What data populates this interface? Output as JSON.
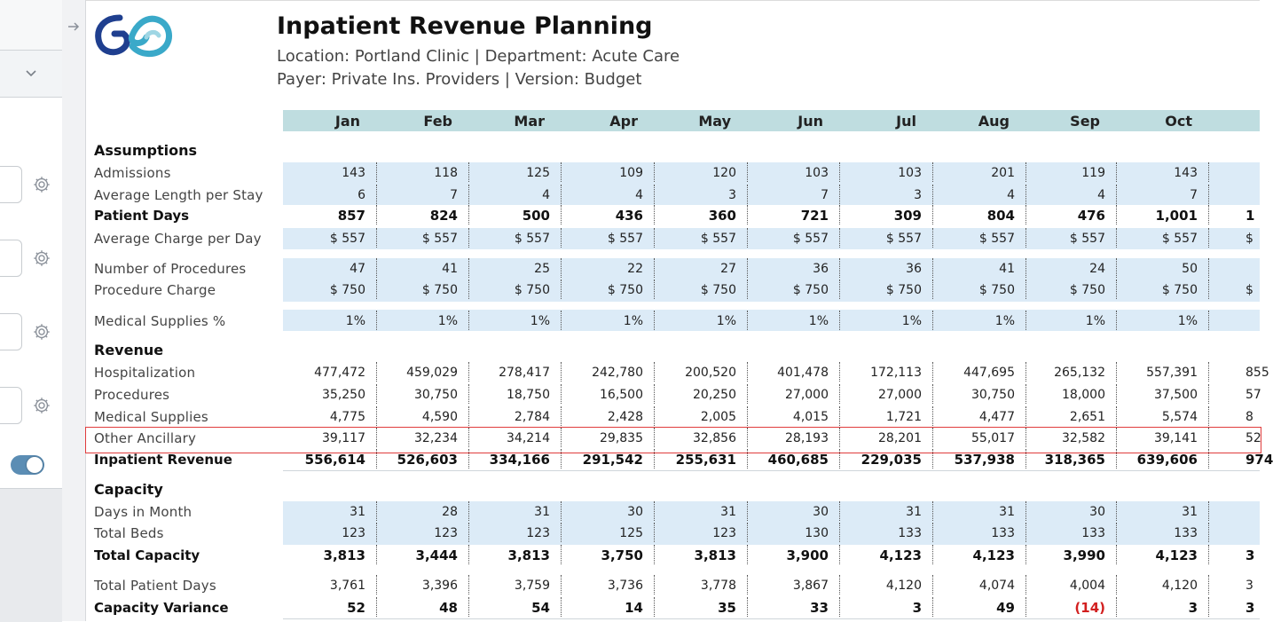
{
  "report": {
    "title": "Inpatient Revenue Planning",
    "subtitle_location": "Location: Portland Clinic | Department: Acute Care",
    "subtitle_payer": "Payer: Private Ins. Providers | Version: Budget"
  },
  "months": [
    "Jan",
    "Feb",
    "Mar",
    "Apr",
    "May",
    "Jun",
    "Jul",
    "Aug",
    "Sep",
    "Oct"
  ],
  "sections": {
    "assumptions": "Assumptions",
    "revenue": "Revenue",
    "capacity": "Capacity"
  },
  "rows": {
    "admissions": {
      "label": "Admissions",
      "values": [
        "143",
        "118",
        "125",
        "109",
        "120",
        "103",
        "103",
        "201",
        "119",
        "143"
      ]
    },
    "avg_length": {
      "label": "Average Length per Stay",
      "values": [
        "6",
        "7",
        "4",
        "4",
        "3",
        "7",
        "3",
        "4",
        "4",
        "7"
      ]
    },
    "patient_days": {
      "label": "Patient Days",
      "values": [
        "857",
        "824",
        "500",
        "436",
        "360",
        "721",
        "309",
        "804",
        "476",
        "1,001"
      ],
      "overflow": "1"
    },
    "avg_charge": {
      "label": "Average Charge per Day",
      "values": [
        "$ 557",
        "$ 557",
        "$ 557",
        "$ 557",
        "$ 557",
        "$ 557",
        "$ 557",
        "$ 557",
        "$ 557",
        "$ 557"
      ],
      "overflow": "$"
    },
    "num_procedures": {
      "label": "Number of Procedures",
      "values": [
        "47",
        "41",
        "25",
        "22",
        "27",
        "36",
        "36",
        "41",
        "24",
        "50"
      ]
    },
    "procedure_charge": {
      "label": "Procedure Charge",
      "values": [
        "$ 750",
        "$ 750",
        "$ 750",
        "$ 750",
        "$ 750",
        "$ 750",
        "$ 750",
        "$ 750",
        "$ 750",
        "$ 750"
      ],
      "overflow": "$"
    },
    "med_supplies_pct": {
      "label": "Medical Supplies %",
      "values": [
        "1%",
        "1%",
        "1%",
        "1%",
        "1%",
        "1%",
        "1%",
        "1%",
        "1%",
        "1%"
      ]
    },
    "hospitalization": {
      "label": "Hospitalization",
      "values": [
        "477,472",
        "459,029",
        "278,417",
        "242,780",
        "200,520",
        "401,478",
        "172,113",
        "447,695",
        "265,132",
        "557,391"
      ],
      "overflow": "855"
    },
    "procedures": {
      "label": "Procedures",
      "values": [
        "35,250",
        "30,750",
        "18,750",
        "16,500",
        "20,250",
        "27,000",
        "27,000",
        "30,750",
        "18,000",
        "37,500"
      ],
      "overflow": "57"
    },
    "medical_supplies": {
      "label": "Medical Supplies",
      "values": [
        "4,775",
        "4,590",
        "2,784",
        "2,428",
        "2,005",
        "4,015",
        "1,721",
        "4,477",
        "2,651",
        "5,574"
      ],
      "overflow": "8"
    },
    "other_ancillary": {
      "label": "Other Ancillary",
      "values": [
        "39,117",
        "32,234",
        "34,214",
        "29,835",
        "32,856",
        "28,193",
        "28,201",
        "55,017",
        "32,582",
        "39,141"
      ],
      "overflow": "52"
    },
    "inpatient_revenue": {
      "label": "Inpatient Revenue",
      "values": [
        "556,614",
        "526,603",
        "334,166",
        "291,542",
        "255,631",
        "460,685",
        "229,035",
        "537,938",
        "318,365",
        "639,606"
      ],
      "overflow": "974"
    },
    "days_in_month": {
      "label": "Days in Month",
      "values": [
        "31",
        "28",
        "31",
        "30",
        "31",
        "30",
        "31",
        "31",
        "30",
        "31"
      ]
    },
    "total_beds": {
      "label": "Total Beds",
      "values": [
        "123",
        "123",
        "123",
        "125",
        "123",
        "130",
        "133",
        "133",
        "133",
        "133"
      ]
    },
    "total_capacity": {
      "label": "Total Capacity",
      "values": [
        "3,813",
        "3,444",
        "3,813",
        "3,750",
        "3,813",
        "3,900",
        "4,123",
        "4,123",
        "3,990",
        "4,123"
      ],
      "overflow": "3"
    },
    "total_patient_days": {
      "label": "Total Patient Days",
      "values": [
        "3,761",
        "3,396",
        "3,759",
        "3,736",
        "3,778",
        "3,867",
        "4,120",
        "4,074",
        "4,004",
        "4,120"
      ],
      "overflow": "3"
    },
    "capacity_variance": {
      "label": "Capacity Variance",
      "values": [
        "52",
        "48",
        "54",
        "14",
        "35",
        "33",
        "3",
        "49",
        "(14)",
        "3"
      ],
      "negative": [
        false,
        false,
        false,
        false,
        false,
        false,
        false,
        false,
        true,
        false
      ],
      "overflow": "3"
    }
  },
  "colors": {
    "month_band": "#bfdde0",
    "input_band": "#dcebf7",
    "highlight": "#e03c3c",
    "negative": "#d21f1f",
    "toggle": "#5b8db4"
  }
}
